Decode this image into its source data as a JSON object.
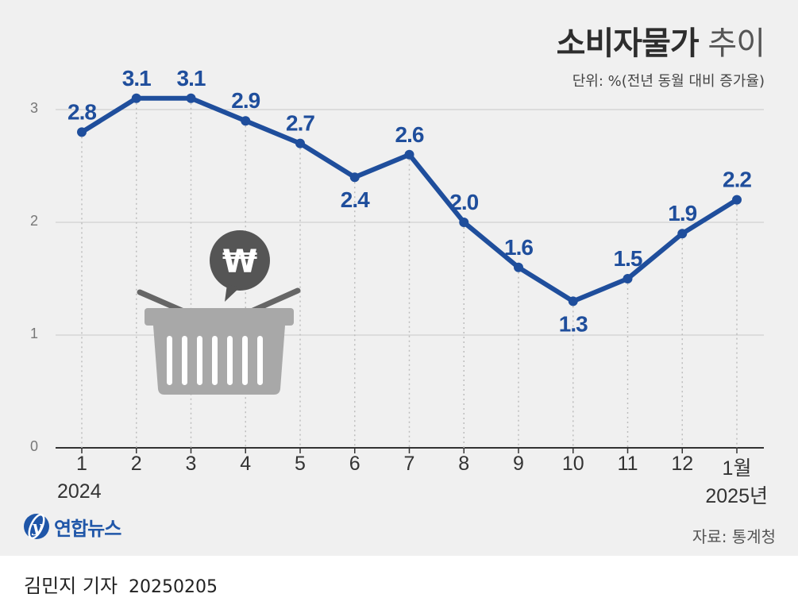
{
  "header": {
    "title_main": "소비자물가",
    "title_sub": "추이",
    "unit": "단위: %(전년 동월 대비 증가율)"
  },
  "chart_data": {
    "type": "line",
    "categories": [
      "1",
      "2",
      "3",
      "4",
      "5",
      "6",
      "7",
      "8",
      "9",
      "10",
      "11",
      "12",
      "1월"
    ],
    "series": [
      {
        "values": [
          2.8,
          3.1,
          3.1,
          2.9,
          2.7,
          2.4,
          2.6,
          2.0,
          1.6,
          1.3,
          1.5,
          1.9,
          2.2
        ]
      }
    ],
    "data_labels": [
      "2.8",
      "3.1",
      "3.1",
      "2.9",
      "2.7",
      "2.4",
      "2.6",
      "2.0",
      "1.6",
      "1.3",
      "1.5",
      "1.9",
      "2.2"
    ],
    "label_position": [
      "above",
      "above",
      "above",
      "above",
      "above",
      "below",
      "above",
      "above",
      "above",
      "below",
      "above",
      "above",
      "above"
    ],
    "yticks": [
      "0",
      "1",
      "2",
      "3"
    ],
    "ylim": [
      0,
      3
    ],
    "year_start": "2024",
    "year_end": "2025년",
    "grid": true,
    "line_color": "#1f4e9c",
    "label_color": "#1f4e9c"
  },
  "footer": {
    "logo_text": "연합뉴스",
    "source": "자료: 통계청",
    "reporter": "김민지 기자",
    "date": "20250205"
  }
}
